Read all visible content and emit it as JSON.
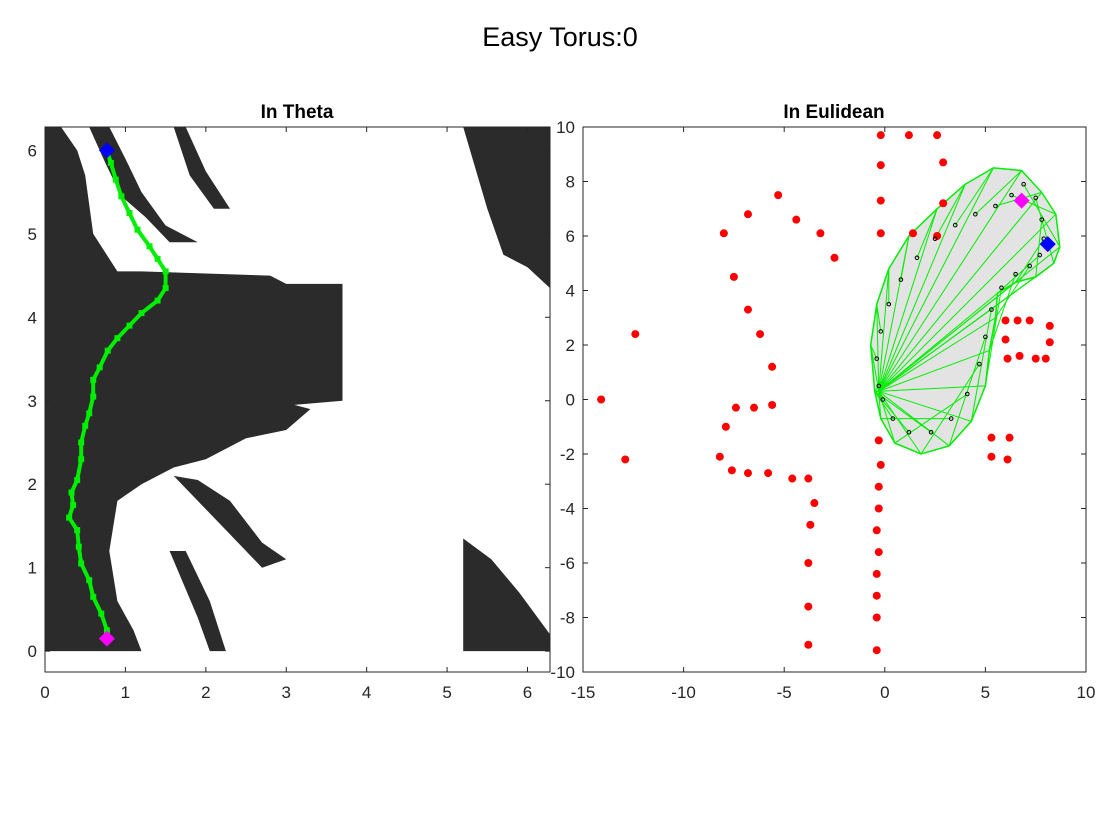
{
  "figure": {
    "suptitle": "Easy Torus:0"
  },
  "colors": {
    "obstacle": "#2b2b2b",
    "path": "#00ee00",
    "start_marker": "#ff00ff",
    "goal_marker": "#0000ff",
    "points": "#ff0000",
    "sweep_fill": "#e3e3e3",
    "trace_dots": "#000000"
  },
  "chart_data": [
    {
      "type": "scatter",
      "title": "In Theta",
      "xlabel": "",
      "ylabel": "",
      "xlim": [
        0,
        6.28
      ],
      "ylim": [
        -0.25,
        6.28
      ],
      "xticks": [
        0,
        1,
        2,
        3,
        4,
        5,
        6
      ],
      "yticks": [
        0,
        1,
        2,
        3,
        4,
        5,
        6
      ],
      "grid": false,
      "obstacle_regions": [
        [
          [
            0,
            6.28
          ],
          [
            0.2,
            6.28
          ],
          [
            0.4,
            6.0
          ],
          [
            0.5,
            5.7
          ],
          [
            0.6,
            5.0
          ],
          [
            0.9,
            4.55
          ],
          [
            1.2,
            4.55
          ],
          [
            2.8,
            4.5
          ],
          [
            3.0,
            4.4
          ],
          [
            3.7,
            4.4
          ],
          [
            3.7,
            3.0
          ],
          [
            3.1,
            2.95
          ],
          [
            3.3,
            2.9
          ],
          [
            3.0,
            2.65
          ],
          [
            2.5,
            2.55
          ],
          [
            2.0,
            2.3
          ],
          [
            1.6,
            2.2
          ],
          [
            1.2,
            2.0
          ],
          [
            0.9,
            1.8
          ],
          [
            0.8,
            1.2
          ],
          [
            0.9,
            0.6
          ],
          [
            1.1,
            0.25
          ],
          [
            1.2,
            0.0
          ],
          [
            0,
            0.0
          ],
          [
            0,
            6.28
          ]
        ],
        [
          [
            0.55,
            6.28
          ],
          [
            0.8,
            6.28
          ],
          [
            1.0,
            5.9
          ],
          [
            1.2,
            5.5
          ],
          [
            1.5,
            5.1
          ],
          [
            1.9,
            4.9
          ],
          [
            1.55,
            4.9
          ],
          [
            1.25,
            5.2
          ],
          [
            0.95,
            5.45
          ],
          [
            0.75,
            5.85
          ],
          [
            0.55,
            6.28
          ]
        ],
        [
          [
            1.6,
            6.28
          ],
          [
            1.75,
            6.28
          ],
          [
            2.0,
            5.75
          ],
          [
            2.3,
            5.3
          ],
          [
            2.1,
            5.3
          ],
          [
            1.8,
            5.7
          ],
          [
            1.6,
            6.28
          ]
        ],
        [
          [
            1.6,
            2.1
          ],
          [
            1.9,
            2.05
          ],
          [
            2.3,
            1.8
          ],
          [
            2.7,
            1.3
          ],
          [
            3.0,
            1.1
          ],
          [
            2.7,
            1.0
          ],
          [
            2.2,
            1.5
          ],
          [
            1.9,
            1.8
          ],
          [
            1.6,
            2.1
          ]
        ],
        [
          [
            1.55,
            1.2
          ],
          [
            1.75,
            1.2
          ],
          [
            2.05,
            0.6
          ],
          [
            2.25,
            0.0
          ],
          [
            2.05,
            0.0
          ],
          [
            1.9,
            0.4
          ],
          [
            1.55,
            1.2
          ]
        ],
        [
          [
            5.2,
            6.28
          ],
          [
            6.28,
            6.28
          ],
          [
            6.28,
            4.35
          ],
          [
            6.0,
            4.6
          ],
          [
            5.7,
            4.75
          ],
          [
            5.5,
            5.3
          ],
          [
            5.2,
            6.28
          ]
        ],
        [
          [
            5.2,
            3.25
          ],
          [
            6.28,
            3.25
          ],
          [
            6.28,
            0.0
          ],
          [
            5.2,
            0.0
          ],
          [
            5.2,
            1.35
          ],
          [
            5.55,
            1.1
          ],
          [
            5.9,
            0.7
          ],
          [
            6.28,
            0.2
          ],
          [
            6.28,
            3.25
          ]
        ]
      ],
      "series": [
        {
          "kind": "path",
          "points": [
            [
              0.77,
              0.15
            ],
            [
              0.77,
              0.25
            ],
            [
              0.7,
              0.45
            ],
            [
              0.6,
              0.65
            ],
            [
              0.55,
              0.85
            ],
            [
              0.45,
              1.05
            ],
            [
              0.42,
              1.25
            ],
            [
              0.4,
              1.45
            ],
            [
              0.3,
              1.6
            ],
            [
              0.35,
              1.75
            ],
            [
              0.33,
              1.9
            ],
            [
              0.4,
              2.05
            ],
            [
              0.45,
              2.3
            ],
            [
              0.45,
              2.5
            ],
            [
              0.5,
              2.7
            ],
            [
              0.55,
              2.85
            ],
            [
              0.6,
              3.05
            ],
            [
              0.6,
              3.25
            ],
            [
              0.68,
              3.4
            ],
            [
              0.78,
              3.6
            ],
            [
              0.9,
              3.75
            ],
            [
              1.05,
              3.9
            ],
            [
              1.2,
              4.05
            ],
            [
              1.4,
              4.2
            ],
            [
              1.5,
              4.35
            ],
            [
              1.5,
              4.55
            ],
            [
              1.4,
              4.7
            ],
            [
              1.3,
              4.85
            ],
            [
              1.15,
              5.05
            ],
            [
              1.05,
              5.25
            ],
            [
              0.95,
              5.45
            ],
            [
              0.88,
              5.65
            ],
            [
              0.82,
              5.85
            ],
            [
              0.77,
              6.0
            ]
          ]
        },
        {
          "kind": "start",
          "points": [
            [
              0.77,
              0.15
            ]
          ]
        },
        {
          "kind": "goal",
          "points": [
            [
              0.77,
              6.0
            ]
          ]
        }
      ]
    },
    {
      "type": "scatter",
      "title": "In Eulidean",
      "xlabel": "",
      "ylabel": "",
      "xlim": [
        -15,
        10
      ],
      "ylim": [
        -10,
        10
      ],
      "xticks": [
        -15,
        -10,
        -5,
        0,
        5,
        10
      ],
      "yticks": [
        -10,
        -8,
        -6,
        -4,
        -2,
        0,
        2,
        4,
        6,
        8,
        10
      ],
      "grid": false,
      "series": [
        {
          "kind": "points",
          "points": [
            [
              -14.1,
              0.0
            ],
            [
              -12.4,
              2.4
            ],
            [
              -12.9,
              -2.2
            ],
            [
              -8.0,
              6.1
            ],
            [
              -7.5,
              4.5
            ],
            [
              -6.8,
              3.3
            ],
            [
              -6.2,
              2.4
            ],
            [
              -5.6,
              1.2
            ],
            [
              -5.6,
              -0.2
            ],
            [
              -6.5,
              -0.3
            ],
            [
              -7.4,
              -0.3
            ],
            [
              -7.9,
              -1.0
            ],
            [
              -8.2,
              -2.1
            ],
            [
              -7.6,
              -2.6
            ],
            [
              -6.8,
              -2.7
            ],
            [
              -5.8,
              -2.7
            ],
            [
              -4.6,
              -2.9
            ],
            [
              -3.8,
              -2.9
            ],
            [
              -3.5,
              -3.8
            ],
            [
              -3.7,
              -4.6
            ],
            [
              -3.8,
              -6.0
            ],
            [
              -3.8,
              -7.6
            ],
            [
              -3.8,
              -9.0
            ],
            [
              -6.8,
              6.8
            ],
            [
              -5.3,
              7.5
            ],
            [
              -4.4,
              6.6
            ],
            [
              -3.2,
              6.1
            ],
            [
              -2.5,
              5.2
            ],
            [
              -0.2,
              9.7
            ],
            [
              1.2,
              9.7
            ],
            [
              2.6,
              9.7
            ],
            [
              -0.2,
              8.6
            ],
            [
              2.9,
              8.7
            ],
            [
              -0.2,
              7.3
            ],
            [
              -0.2,
              6.1
            ],
            [
              2.9,
              7.2
            ],
            [
              1.4,
              6.1
            ],
            [
              2.6,
              6.0
            ],
            [
              -0.3,
              -1.5
            ],
            [
              -0.2,
              -2.4
            ],
            [
              -0.3,
              -3.2
            ],
            [
              -0.3,
              -4.0
            ],
            [
              -0.4,
              -4.8
            ],
            [
              -0.3,
              -5.6
            ],
            [
              -0.4,
              -6.4
            ],
            [
              -0.4,
              -7.2
            ],
            [
              -0.4,
              -8.0
            ],
            [
              -0.4,
              -9.2
            ],
            [
              6.0,
              2.9
            ],
            [
              6.6,
              2.9
            ],
            [
              7.2,
              2.9
            ],
            [
              8.2,
              2.7
            ],
            [
              8.2,
              2.1
            ],
            [
              6.0,
              2.2
            ],
            [
              6.1,
              1.5
            ],
            [
              6.7,
              1.6
            ],
            [
              7.5,
              1.5
            ],
            [
              8.0,
              1.5
            ],
            [
              5.3,
              -1.4
            ],
            [
              6.2,
              -1.4
            ],
            [
              5.3,
              -2.1
            ],
            [
              6.1,
              -2.2
            ]
          ]
        },
        {
          "kind": "sweep",
          "points": [
            [
              -0.5,
              0.3
            ],
            [
              -0.7,
              2.0
            ],
            [
              -0.4,
              3.5
            ],
            [
              0.2,
              4.8
            ],
            [
              1.2,
              6.0
            ],
            [
              2.6,
              7.0
            ],
            [
              4.0,
              7.9
            ],
            [
              5.4,
              8.5
            ],
            [
              6.8,
              8.4
            ],
            [
              7.8,
              7.6
            ],
            [
              8.5,
              6.8
            ],
            [
              8.7,
              5.6
            ],
            [
              8.4,
              5.0
            ],
            [
              7.5,
              4.5
            ],
            [
              6.5,
              4.3
            ],
            [
              5.6,
              3.9
            ],
            [
              5.5,
              3.0
            ],
            [
              5.2,
              1.8
            ],
            [
              5.0,
              0.5
            ],
            [
              4.3,
              -0.8
            ],
            [
              3.2,
              -1.7
            ],
            [
              1.8,
              -2.0
            ],
            [
              0.5,
              -1.6
            ],
            [
              -0.2,
              -0.7
            ],
            [
              -0.5,
              0.3
            ]
          ]
        },
        {
          "kind": "trace",
          "points": [
            [
              -0.3,
              0.5
            ],
            [
              -0.4,
              1.5
            ],
            [
              -0.2,
              2.5
            ],
            [
              0.2,
              3.5
            ],
            [
              0.8,
              4.4
            ],
            [
              1.6,
              5.2
            ],
            [
              2.5,
              5.9
            ],
            [
              3.5,
              6.4
            ],
            [
              4.5,
              6.8
            ],
            [
              5.5,
              7.1
            ],
            [
              6.3,
              7.5
            ],
            [
              6.9,
              7.9
            ],
            [
              7.5,
              7.4
            ],
            [
              7.8,
              6.6
            ],
            [
              7.9,
              5.9
            ],
            [
              7.7,
              5.3
            ],
            [
              7.2,
              4.9
            ],
            [
              6.5,
              4.6
            ],
            [
              5.8,
              4.1
            ],
            [
              5.3,
              3.3
            ],
            [
              5.0,
              2.3
            ],
            [
              4.7,
              1.3
            ],
            [
              4.1,
              0.2
            ],
            [
              3.3,
              -0.7
            ],
            [
              2.3,
              -1.2
            ],
            [
              1.2,
              -1.2
            ],
            [
              0.4,
              -0.7
            ],
            [
              -0.1,
              0.0
            ]
          ]
        },
        {
          "kind": "start",
          "points": [
            [
              6.8,
              7.3
            ]
          ]
        },
        {
          "kind": "goal",
          "points": [
            [
              8.1,
              5.7
            ]
          ]
        }
      ]
    }
  ]
}
